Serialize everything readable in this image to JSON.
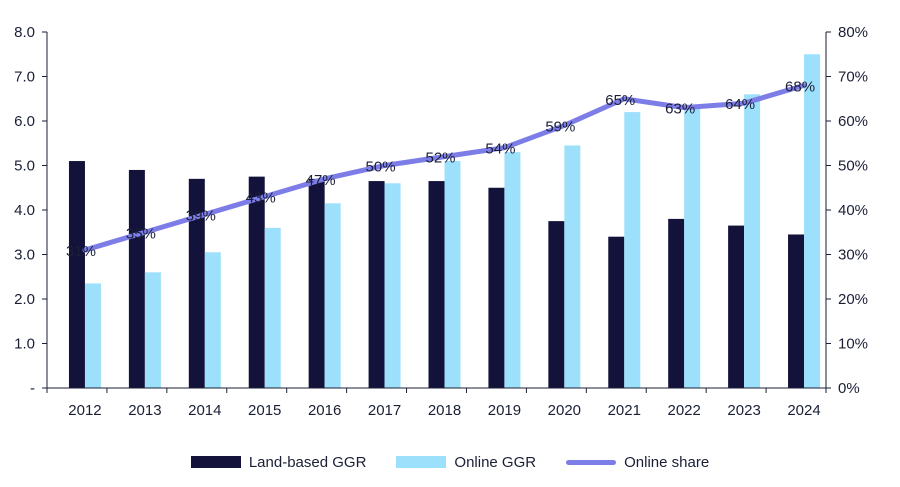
{
  "chart_data": {
    "type": "bar",
    "categories": [
      "2012",
      "2013",
      "2014",
      "2015",
      "2016",
      "2017",
      "2018",
      "2019",
      "2020",
      "2021",
      "2022",
      "2023",
      "2024"
    ],
    "series": [
      {
        "name": "Land-based GGR",
        "type": "bar",
        "axis": "left",
        "color": "#13123a",
        "values": [
          5.1,
          4.9,
          4.7,
          4.75,
          4.7,
          4.65,
          4.65,
          4.5,
          3.75,
          3.4,
          3.8,
          3.65,
          3.45
        ]
      },
      {
        "name": "Online GGR",
        "type": "bar",
        "axis": "left",
        "color": "#9de0fb",
        "values": [
          2.35,
          2.6,
          3.05,
          3.6,
          4.15,
          4.6,
          5.1,
          5.3,
          5.45,
          6.2,
          6.35,
          6.6,
          7.5
        ]
      },
      {
        "name": "Online share",
        "type": "line",
        "axis": "right",
        "color": "#7d7de8",
        "values": [
          31,
          35,
          39,
          43,
          47,
          50,
          52,
          54,
          59,
          65,
          63,
          64,
          68
        ],
        "labels": [
          "31%",
          "35%",
          "39%",
          "43%",
          "47%",
          "50%",
          "52%",
          "54%",
          "59%",
          "65%",
          "63%",
          "64%",
          "68%"
        ]
      }
    ],
    "y_left": {
      "ylim": [
        0,
        8
      ],
      "ticks": [
        "-",
        "1.0",
        "2.0",
        "3.0",
        "4.0",
        "5.0",
        "6.0",
        "7.0",
        "8.0"
      ]
    },
    "y_right": {
      "ylim": [
        0,
        80
      ],
      "ticks": [
        "0%",
        "10%",
        "20%",
        "30%",
        "40%",
        "50%",
        "60%",
        "70%",
        "80%"
      ]
    },
    "title": "",
    "xlabel": "",
    "ylabel": "",
    "grid": false,
    "legend_position": "bottom"
  },
  "legend": {
    "land_label": "Land-based GGR",
    "online_label": "Online GGR",
    "share_label": "Online share"
  },
  "colors": {
    "land": "#13123a",
    "online": "#9de0fb",
    "share": "#7d7de8",
    "axis": "#1a1f36"
  }
}
